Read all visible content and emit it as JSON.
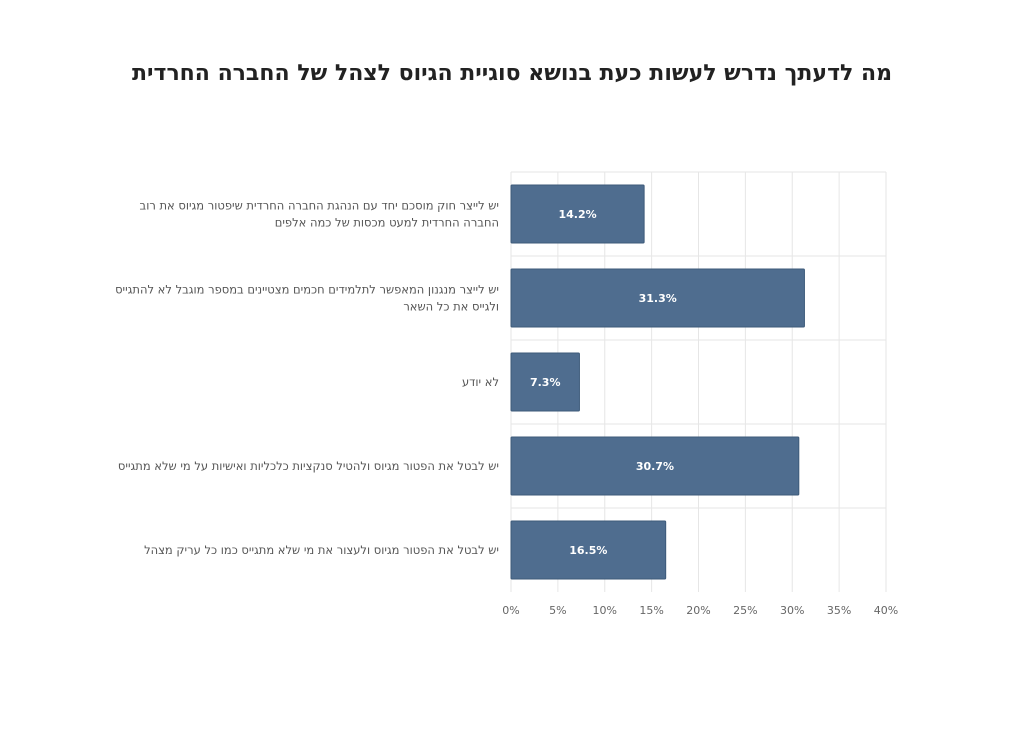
{
  "chart_data": {
    "type": "bar",
    "orientation": "horizontal",
    "title": "מה לדעתך נדרש לעשות כעת בנושא סוגיית הגיוס לצהל של החברה החרדית",
    "categories": [
      [
        "יש לייצר חוק מוסכם יחד עם הנהגת החברה החרדית שיפטור מגיוס את רוב",
        "החברה החרדית למעט מכסות של כמה אלפים"
      ],
      [
        "יש לייצר מנגנון המאפשר לתלמידים חכמים מצטיינים במספר מוגבל לא להתגייס",
        "ולגייס את כל השאר"
      ],
      [
        "לא יודע"
      ],
      [
        "יש לבטל את הפטור מגיוס ולהטיל סנקציות כלכליות ואישיות על מי שלא מתגייס"
      ],
      [
        "יש לבטל את הפטור מגיוס ולעצור את מי שלא מתגייס כמו כל עריק מצהל"
      ]
    ],
    "values": [
      14.2,
      31.3,
      7.3,
      30.7,
      16.5
    ],
    "data_labels": [
      "14.2%",
      "31.3%",
      "7.3%",
      "30.7%",
      "16.5%"
    ],
    "xlim": [
      0,
      40
    ],
    "x_ticks": [
      "0%",
      "5%",
      "10%",
      "15%",
      "20%",
      "25%",
      "30%",
      "35%",
      "40%"
    ],
    "grid": true,
    "bar_color": "#4f6d8f",
    "bar_border_color": "#3d5a7a",
    "grid_color": "#e6e6e6"
  }
}
